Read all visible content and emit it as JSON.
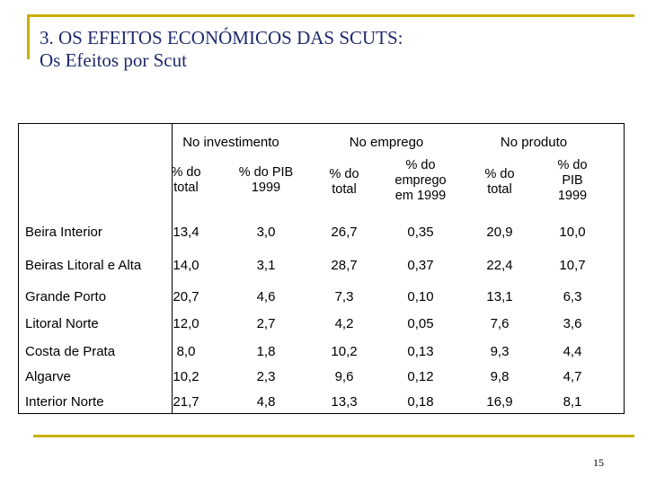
{
  "title": {
    "line1": "3. OS EFEITOS ECONÓMICOS DAS SCUTS:",
    "line2": "Os Efeitos por Scut"
  },
  "table": {
    "groups": [
      "No investimento",
      "No emprego",
      "No produto"
    ],
    "subheaders": [
      [
        "% do",
        "total"
      ],
      [
        "% do PIB",
        "1999"
      ],
      [
        "% do",
        "total"
      ],
      [
        "% do",
        "emprego",
        "em 1999"
      ],
      [
        "% do",
        "total"
      ],
      [
        "% do",
        "PIB",
        "1999"
      ]
    ],
    "rows": [
      {
        "label": "Beira Interior",
        "values": [
          "13,4",
          "3,0",
          "26,7",
          "0,35",
          "20,9",
          "10,0"
        ]
      },
      {
        "label": "Beiras Litoral e Alta",
        "values": [
          "14,0",
          "3,1",
          "28,7",
          "0,37",
          "22,4",
          "10,7"
        ]
      },
      {
        "label": "Grande Porto",
        "values": [
          "20,7",
          "4,6",
          "7,3",
          "0,10",
          "13,1",
          "6,3"
        ]
      },
      {
        "label": "Litoral Norte",
        "values": [
          "12,0",
          "2,7",
          "4,2",
          "0,05",
          "7,6",
          "3,6"
        ]
      },
      {
        "label": "Costa de Prata",
        "values": [
          "8,0",
          "1,8",
          "10,2",
          "0,13",
          "9,3",
          "4,4"
        ]
      },
      {
        "label": "Algarve",
        "values": [
          "10,2",
          "2,3",
          "9,6",
          "0,12",
          "9,8",
          "4,7"
        ]
      },
      {
        "label": "Interior Norte",
        "values": [
          "21,7",
          "4,8",
          "13,3",
          "0,18",
          "16,9",
          "8,1"
        ]
      }
    ]
  },
  "page_number": "15",
  "colors": {
    "accent": "#c9b000",
    "title": "#1f2a6e"
  }
}
